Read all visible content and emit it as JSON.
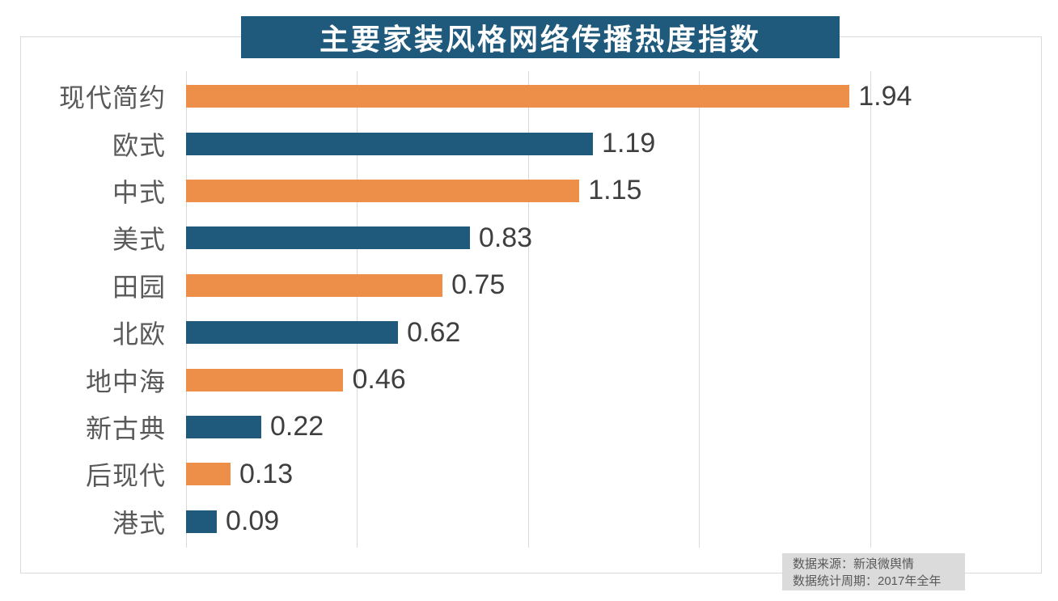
{
  "title": "主要家装风格网络传播热度指数",
  "footer": {
    "source_line": "数据来源：新浪微舆情",
    "period_line": "数据统计周期：2017年全年"
  },
  "colors": {
    "banner_bg": "#1f5a7d",
    "bar_orange": "#ed8e49",
    "bar_blue": "#1f5a7d",
    "gridline": "#d9d9d9",
    "category_label": "#595959",
    "value_label": "#3f3f3f",
    "footer_bg": "#dbdbdb",
    "title_text": "#ffffff"
  },
  "chart_data": {
    "type": "bar",
    "orientation": "horizontal",
    "title": "主要家装风格网络传播热度指数",
    "categories": [
      "现代简约",
      "欧式",
      "中式",
      "美式",
      "田园",
      "北欧",
      "地中海",
      "新古典",
      "后现代",
      "港式"
    ],
    "values": [
      1.94,
      1.19,
      1.15,
      0.83,
      0.75,
      0.62,
      0.46,
      0.22,
      0.13,
      0.09
    ],
    "value_labels": [
      "1.94",
      "1.19",
      "1.15",
      "0.83",
      "0.75",
      "0.62",
      "0.46",
      "0.22",
      "0.13",
      "0.09"
    ],
    "bar_color_pattern": [
      "#ed8e49",
      "#1f5a7d"
    ],
    "xlabel": "",
    "ylabel": "",
    "xlim": [
      0,
      2.5
    ],
    "gridline_interval": 0.5,
    "grid": true,
    "legend": false,
    "data_labels": true
  }
}
